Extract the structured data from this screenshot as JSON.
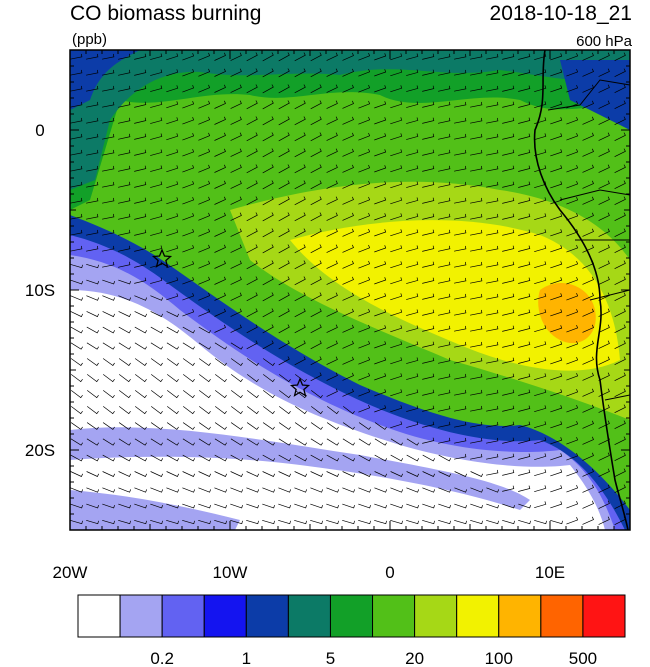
{
  "header": {
    "title": "CO biomass burning",
    "units": "(ppb)",
    "time": "2018-10-18_21",
    "level": "600 hPa"
  },
  "axes": {
    "x_labels": [
      "20W",
      "10W",
      "0",
      "10E"
    ],
    "y_labels": [
      "0",
      "10S",
      "20S"
    ]
  },
  "colorbar": {
    "colors": [
      "#ffffff",
      "#a4a4f2",
      "#6262f2",
      "#1414f0",
      "#0c3ca8",
      "#0c7a66",
      "#12a028",
      "#52c018",
      "#a6d816",
      "#f2f200",
      "#ffb400",
      "#ff6400",
      "#ff1414"
    ],
    "labels": [
      "0.2",
      "1",
      "5",
      "20",
      "100",
      "500"
    ]
  }
}
